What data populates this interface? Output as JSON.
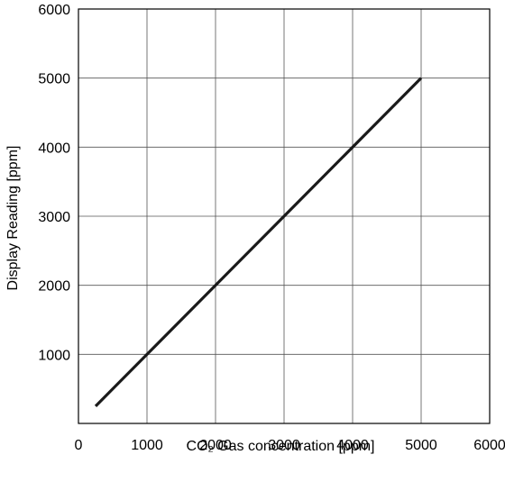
{
  "chart_data": {
    "type": "line",
    "title": "",
    "xlabel": "CO₂ Gas concentration [ppm]",
    "ylabel": "Display Reading [ppm]",
    "xlim": [
      0,
      6000
    ],
    "ylim": [
      0,
      6000
    ],
    "xticks": [
      "0",
      "1000",
      "2000",
      "3000",
      "4000",
      "5000",
      "6000"
    ],
    "yticks": [
      "1000",
      "2000",
      "3000",
      "4000",
      "5000",
      "6000"
    ],
    "grid": true,
    "legend": "none",
    "series": [
      {
        "x": [
          250,
          5000
        ],
        "y": [
          250,
          5000
        ],
        "color": "#1a1a1a"
      }
    ]
  }
}
